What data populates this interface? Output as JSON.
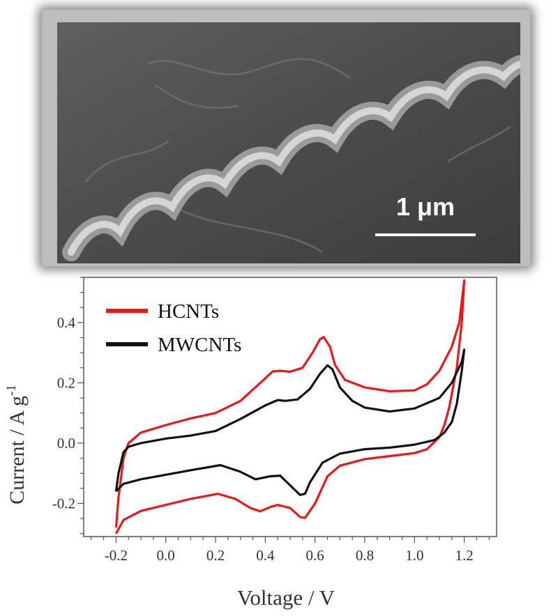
{
  "micrograph": {
    "scale_bar_label": "1 μm"
  },
  "colors": {
    "hcnts": "#e8191b",
    "mwcnts": "#111111",
    "axis": "#555555"
  },
  "chart_data": {
    "type": "line",
    "xlabel": "Voltage / V",
    "ylabel": "Current / A g",
    "ylabel_sup": "-1",
    "xlim": [
      -0.33,
      1.33
    ],
    "ylim": [
      -0.31,
      0.55
    ],
    "x_ticks": [
      "-0.2",
      "0.0",
      "0.2",
      "0.4",
      "0.6",
      "0.8",
      "1.0",
      "1.2"
    ],
    "y_ticks": [
      "-0.2",
      "0.0",
      "0.2",
      "0.4"
    ],
    "legend_position": "top-left",
    "series": [
      {
        "name": "HCNTs",
        "color": "#e8191b",
        "points": [
          [
            -0.2,
            -0.28
          ],
          [
            -0.19,
            -0.18
          ],
          [
            -0.17,
            -0.05
          ],
          [
            -0.15,
            0.0
          ],
          [
            -0.1,
            0.035
          ],
          [
            0.0,
            0.06
          ],
          [
            0.1,
            0.082
          ],
          [
            0.2,
            0.1
          ],
          [
            0.3,
            0.14
          ],
          [
            0.38,
            0.2
          ],
          [
            0.43,
            0.238
          ],
          [
            0.46,
            0.24
          ],
          [
            0.5,
            0.237
          ],
          [
            0.55,
            0.25
          ],
          [
            0.59,
            0.3
          ],
          [
            0.62,
            0.345
          ],
          [
            0.635,
            0.352
          ],
          [
            0.66,
            0.32
          ],
          [
            0.68,
            0.26
          ],
          [
            0.72,
            0.21
          ],
          [
            0.8,
            0.185
          ],
          [
            0.9,
            0.172
          ],
          [
            1.0,
            0.175
          ],
          [
            1.05,
            0.195
          ],
          [
            1.1,
            0.24
          ],
          [
            1.15,
            0.32
          ],
          [
            1.18,
            0.4
          ],
          [
            1.2,
            0.54
          ],
          [
            1.19,
            0.4
          ],
          [
            1.17,
            0.25
          ],
          [
            1.14,
            0.12
          ],
          [
            1.12,
            0.06
          ],
          [
            1.1,
            0.02
          ],
          [
            1.05,
            -0.02
          ],
          [
            1.0,
            -0.033
          ],
          [
            0.9,
            -0.043
          ],
          [
            0.8,
            -0.053
          ],
          [
            0.7,
            -0.075
          ],
          [
            0.65,
            -0.11
          ],
          [
            0.6,
            -0.2
          ],
          [
            0.56,
            -0.248
          ],
          [
            0.54,
            -0.245
          ],
          [
            0.5,
            -0.215
          ],
          [
            0.45,
            -0.205
          ],
          [
            0.42,
            -0.212
          ],
          [
            0.38,
            -0.226
          ],
          [
            0.34,
            -0.215
          ],
          [
            0.28,
            -0.185
          ],
          [
            0.21,
            -0.168
          ],
          [
            0.1,
            -0.185
          ],
          [
            0.0,
            -0.205
          ],
          [
            -0.1,
            -0.225
          ],
          [
            -0.17,
            -0.255
          ],
          [
            -0.2,
            -0.3
          ]
        ]
      },
      {
        "name": "MWCNTs",
        "color": "#111111",
        "points": [
          [
            -0.2,
            -0.16
          ],
          [
            -0.19,
            -0.1
          ],
          [
            -0.17,
            -0.03
          ],
          [
            -0.15,
            -0.012
          ],
          [
            -0.1,
            0.0
          ],
          [
            0.0,
            0.015
          ],
          [
            0.1,
            0.025
          ],
          [
            0.2,
            0.04
          ],
          [
            0.3,
            0.08
          ],
          [
            0.4,
            0.125
          ],
          [
            0.45,
            0.143
          ],
          [
            0.48,
            0.14
          ],
          [
            0.53,
            0.145
          ],
          [
            0.58,
            0.18
          ],
          [
            0.62,
            0.23
          ],
          [
            0.65,
            0.258
          ],
          [
            0.67,
            0.245
          ],
          [
            0.7,
            0.185
          ],
          [
            0.75,
            0.14
          ],
          [
            0.8,
            0.118
          ],
          [
            0.9,
            0.105
          ],
          [
            1.0,
            0.115
          ],
          [
            1.1,
            0.15
          ],
          [
            1.15,
            0.2
          ],
          [
            1.19,
            0.27
          ],
          [
            1.2,
            0.31
          ],
          [
            1.19,
            0.24
          ],
          [
            1.17,
            0.13
          ],
          [
            1.15,
            0.07
          ],
          [
            1.12,
            0.035
          ],
          [
            1.08,
            0.01
          ],
          [
            1.0,
            -0.005
          ],
          [
            0.9,
            -0.015
          ],
          [
            0.8,
            -0.02
          ],
          [
            0.7,
            -0.035
          ],
          [
            0.63,
            -0.065
          ],
          [
            0.58,
            -0.13
          ],
          [
            0.56,
            -0.168
          ],
          [
            0.54,
            -0.172
          ],
          [
            0.5,
            -0.14
          ],
          [
            0.46,
            -0.108
          ],
          [
            0.42,
            -0.11
          ],
          [
            0.36,
            -0.12
          ],
          [
            0.3,
            -0.095
          ],
          [
            0.22,
            -0.073
          ],
          [
            0.1,
            -0.09
          ],
          [
            0.0,
            -0.105
          ],
          [
            -0.1,
            -0.12
          ],
          [
            -0.17,
            -0.135
          ],
          [
            -0.2,
            -0.16
          ]
        ]
      }
    ]
  }
}
